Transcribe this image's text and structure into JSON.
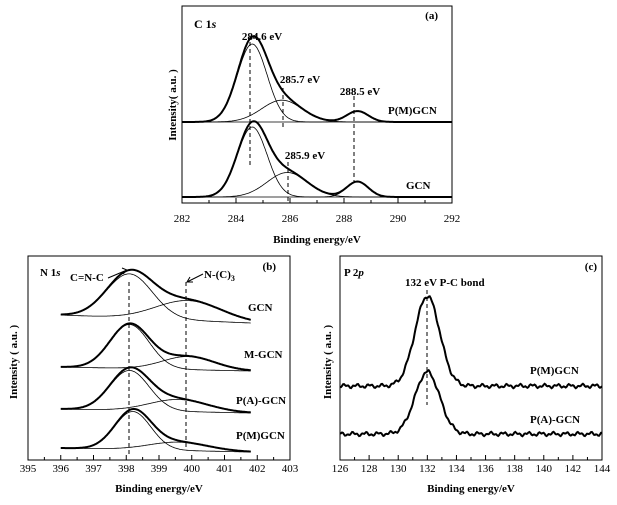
{
  "chart_data": [
    {
      "type": "line",
      "panel_label": "(a)",
      "element": "C 1",
      "orbital": "s",
      "xlabel": "Binding energy/eV",
      "ylabel": "Intensity( a.u. )",
      "xlim": [
        282,
        292
      ],
      "xticks": [
        282,
        284,
        286,
        288,
        290,
        292
      ],
      "series": [
        {
          "name": "P(M)GCN",
          "peaks": [
            {
              "center": 284.6,
              "height": 1.0,
              "width": 0.55
            },
            {
              "center": 285.7,
              "height": 0.28,
              "width": 0.75
            },
            {
              "center": 288.5,
              "height": 0.14,
              "width": 0.4
            }
          ]
        },
        {
          "name": "GCN",
          "peaks": [
            {
              "center": 284.6,
              "height": 1.0,
              "width": 0.55
            },
            {
              "center": 285.9,
              "height": 0.35,
              "width": 0.75
            },
            {
              "center": 288.5,
              "height": 0.22,
              "width": 0.4
            }
          ]
        }
      ],
      "annotations": [
        "284.6 eV",
        "285.7 eV",
        "288.5 eV",
        "285.9 eV"
      ]
    },
    {
      "type": "line",
      "panel_label": "(b)",
      "element": "N 1",
      "orbital": "s",
      "xlabel": "Binding energy/eV",
      "ylabel": "Intensity ( a.u. )",
      "xlim": [
        395,
        403
      ],
      "xticks": [
        395,
        396,
        397,
        398,
        399,
        400,
        401,
        402,
        403
      ],
      "series": [
        {
          "name": "GCN",
          "peaks": [
            {
              "center": 398.1,
              "height": 1.0,
              "width": 0.7
            },
            {
              "center": 399.9,
              "height": 0.45,
              "width": 1.0
            }
          ]
        },
        {
          "name": "M-GCN",
          "peaks": [
            {
              "center": 398.1,
              "height": 1.0,
              "width": 0.6
            },
            {
              "center": 399.9,
              "height": 0.3,
              "width": 0.8
            }
          ]
        },
        {
          "name": "P(A)-GCN",
          "peaks": [
            {
              "center": 398.1,
              "height": 1.0,
              "width": 0.6
            },
            {
              "center": 399.6,
              "height": 0.3,
              "width": 0.9
            }
          ]
        },
        {
          "name": "P(M)GCN",
          "peaks": [
            {
              "center": 398.2,
              "height": 1.0,
              "width": 0.55
            },
            {
              "center": 399.6,
              "height": 0.22,
              "width": 0.9
            }
          ]
        }
      ],
      "annotations": [
        "C=N-C",
        "N-(C)",
        "3"
      ]
    },
    {
      "type": "line",
      "panel_label": "(c)",
      "element": "P 2",
      "orbital": "p",
      "xlabel": "Binding energy/eV",
      "ylabel": "Intensity ( a.u. )",
      "xlim": [
        126,
        144
      ],
      "xticks": [
        126,
        128,
        130,
        132,
        134,
        136,
        138,
        140,
        142,
        144
      ],
      "series": [
        {
          "name": "P(M)GCN",
          "peaks": [
            {
              "center": 132.0,
              "height": 1.0,
              "width": 0.85
            }
          ]
        },
        {
          "name": "P(A)-GCN",
          "peaks": [
            {
              "center": 132.0,
              "height": 1.0,
              "width": 0.85
            }
          ]
        }
      ],
      "annotations": [
        "132 eV P-C bond"
      ]
    }
  ]
}
